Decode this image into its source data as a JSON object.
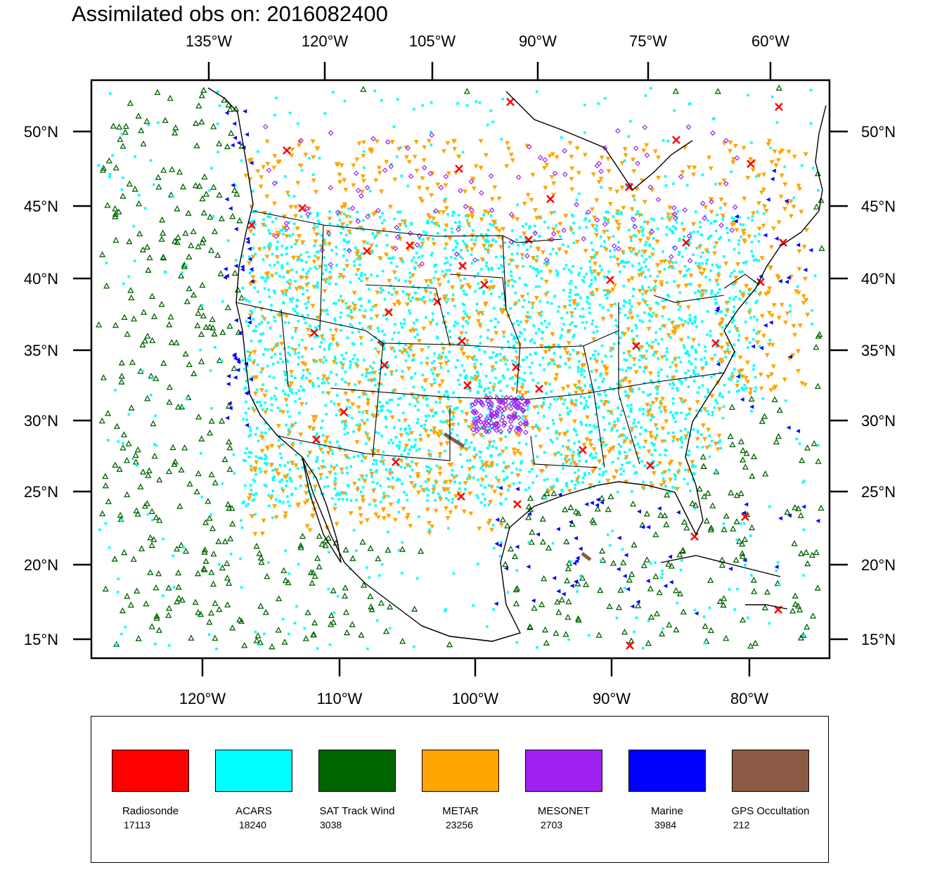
{
  "title": "Assimilated obs on: 2016082400",
  "top_axis_labels": [
    "135°W",
    "120°W",
    "105°W",
    "90°W",
    "75°W",
    "60°W"
  ],
  "bottom_axis_labels": [
    "120°W",
    "110°W",
    "100°W",
    "90°W",
    "80°W"
  ],
  "left_axis_labels": [
    "50°N",
    "45°N",
    "40°N",
    "35°N",
    "30°N",
    "25°N",
    "20°N",
    "15°N"
  ],
  "right_axis_labels": [
    "50°N",
    "45°N",
    "40°N",
    "35°N",
    "30°N",
    "25°N",
    "20°N",
    "15°N"
  ],
  "legend": [
    {
      "name": "Radiosonde",
      "count": "17113",
      "color": "#ff0000",
      "symbol": "x"
    },
    {
      "name": "ACARS",
      "count": "18240",
      "color": "#00ffff",
      "symbol": "dot"
    },
    {
      "name": "SAT Track Wind",
      "count": "3038",
      "color": "#006400",
      "symbol": "triangle"
    },
    {
      "name": "METAR",
      "count": "23256",
      "color": "#ffa500",
      "symbol": "triangle-down"
    },
    {
      "name": "MESONET",
      "count": "2703",
      "color": "#a020f0",
      "symbol": "diamond"
    },
    {
      "name": "Marine",
      "count": "3984",
      "color": "#0000ff",
      "symbol": "triangle-left"
    },
    {
      "name": "GPS Occultation",
      "count": "212",
      "color": "#8b5a44",
      "symbol": "dash"
    }
  ]
}
